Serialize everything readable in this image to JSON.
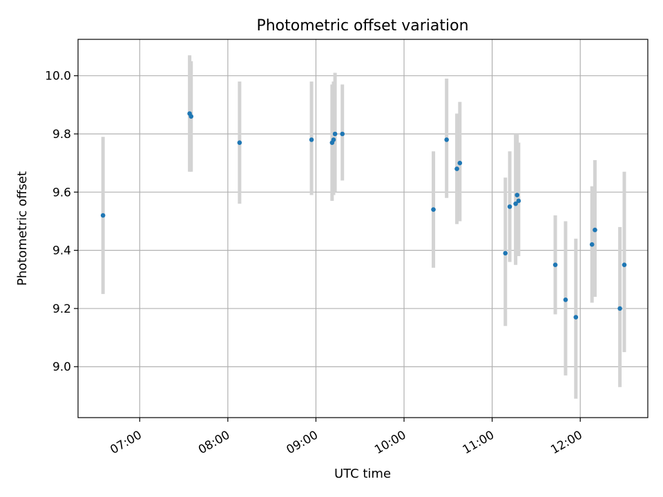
{
  "chart_data": {
    "type": "scatter",
    "title": "Photometric offset variation",
    "xlabel": "UTC time",
    "ylabel": "Photometric offset",
    "x_axis": "time",
    "xlim": [
      "06:18",
      "12:46"
    ],
    "ylim": [
      8.825,
      10.125
    ],
    "x_ticks": [
      "07:00",
      "08:00",
      "09:00",
      "10:00",
      "11:00",
      "12:00"
    ],
    "y_ticks": [
      9.0,
      9.2,
      9.4,
      9.6,
      9.8,
      10.0
    ],
    "y_tick_labels": [
      "9.0",
      "9.2",
      "9.4",
      "9.6",
      "9.8",
      "10.0"
    ],
    "grid": true,
    "marker_color": "#1f77b4",
    "errorbar_color": "#d3d3d3",
    "points": [
      {
        "x": "06:35",
        "y": 9.52,
        "lo": 9.25,
        "hi": 9.79
      },
      {
        "x": "07:34",
        "y": 9.87,
        "lo": 9.67,
        "hi": 10.07
      },
      {
        "x": "07:35",
        "y": 9.86,
        "lo": 9.67,
        "hi": 10.05
      },
      {
        "x": "08:08",
        "y": 9.77,
        "lo": 9.56,
        "hi": 9.98
      },
      {
        "x": "08:57",
        "y": 9.78,
        "lo": 9.59,
        "hi": 9.98
      },
      {
        "x": "09:11",
        "y": 9.77,
        "lo": 9.57,
        "hi": 9.97
      },
      {
        "x": "09:12",
        "y": 9.78,
        "lo": 9.59,
        "hi": 9.98
      },
      {
        "x": "09:13",
        "y": 9.8,
        "lo": 9.6,
        "hi": 10.01
      },
      {
        "x": "09:18",
        "y": 9.8,
        "lo": 9.64,
        "hi": 9.97
      },
      {
        "x": "10:20",
        "y": 9.54,
        "lo": 9.34,
        "hi": 9.74
      },
      {
        "x": "10:29",
        "y": 9.78,
        "lo": 9.58,
        "hi": 9.99
      },
      {
        "x": "10:36",
        "y": 9.68,
        "lo": 9.49,
        "hi": 9.87
      },
      {
        "x": "10:38",
        "y": 9.7,
        "lo": 9.5,
        "hi": 9.91
      },
      {
        "x": "11:09",
        "y": 9.39,
        "lo": 9.14,
        "hi": 9.65
      },
      {
        "x": "11:12",
        "y": 9.55,
        "lo": 9.36,
        "hi": 9.74
      },
      {
        "x": "11:16",
        "y": 9.56,
        "lo": 9.35,
        "hi": 9.8
      },
      {
        "x": "11:17",
        "y": 9.59,
        "lo": 9.38,
        "hi": 9.8
      },
      {
        "x": "11:18",
        "y": 9.57,
        "lo": 9.38,
        "hi": 9.77
      },
      {
        "x": "11:43",
        "y": 9.35,
        "lo": 9.18,
        "hi": 9.52
      },
      {
        "x": "11:50",
        "y": 9.23,
        "lo": 8.97,
        "hi": 9.5
      },
      {
        "x": "11:57",
        "y": 9.17,
        "lo": 8.89,
        "hi": 9.44
      },
      {
        "x": "12:08",
        "y": 9.42,
        "lo": 9.22,
        "hi": 9.62
      },
      {
        "x": "12:10",
        "y": 9.47,
        "lo": 9.24,
        "hi": 9.71
      },
      {
        "x": "12:27",
        "y": 9.2,
        "lo": 8.93,
        "hi": 9.48
      },
      {
        "x": "12:30",
        "y": 9.35,
        "lo": 9.05,
        "hi": 9.67
      }
    ]
  }
}
